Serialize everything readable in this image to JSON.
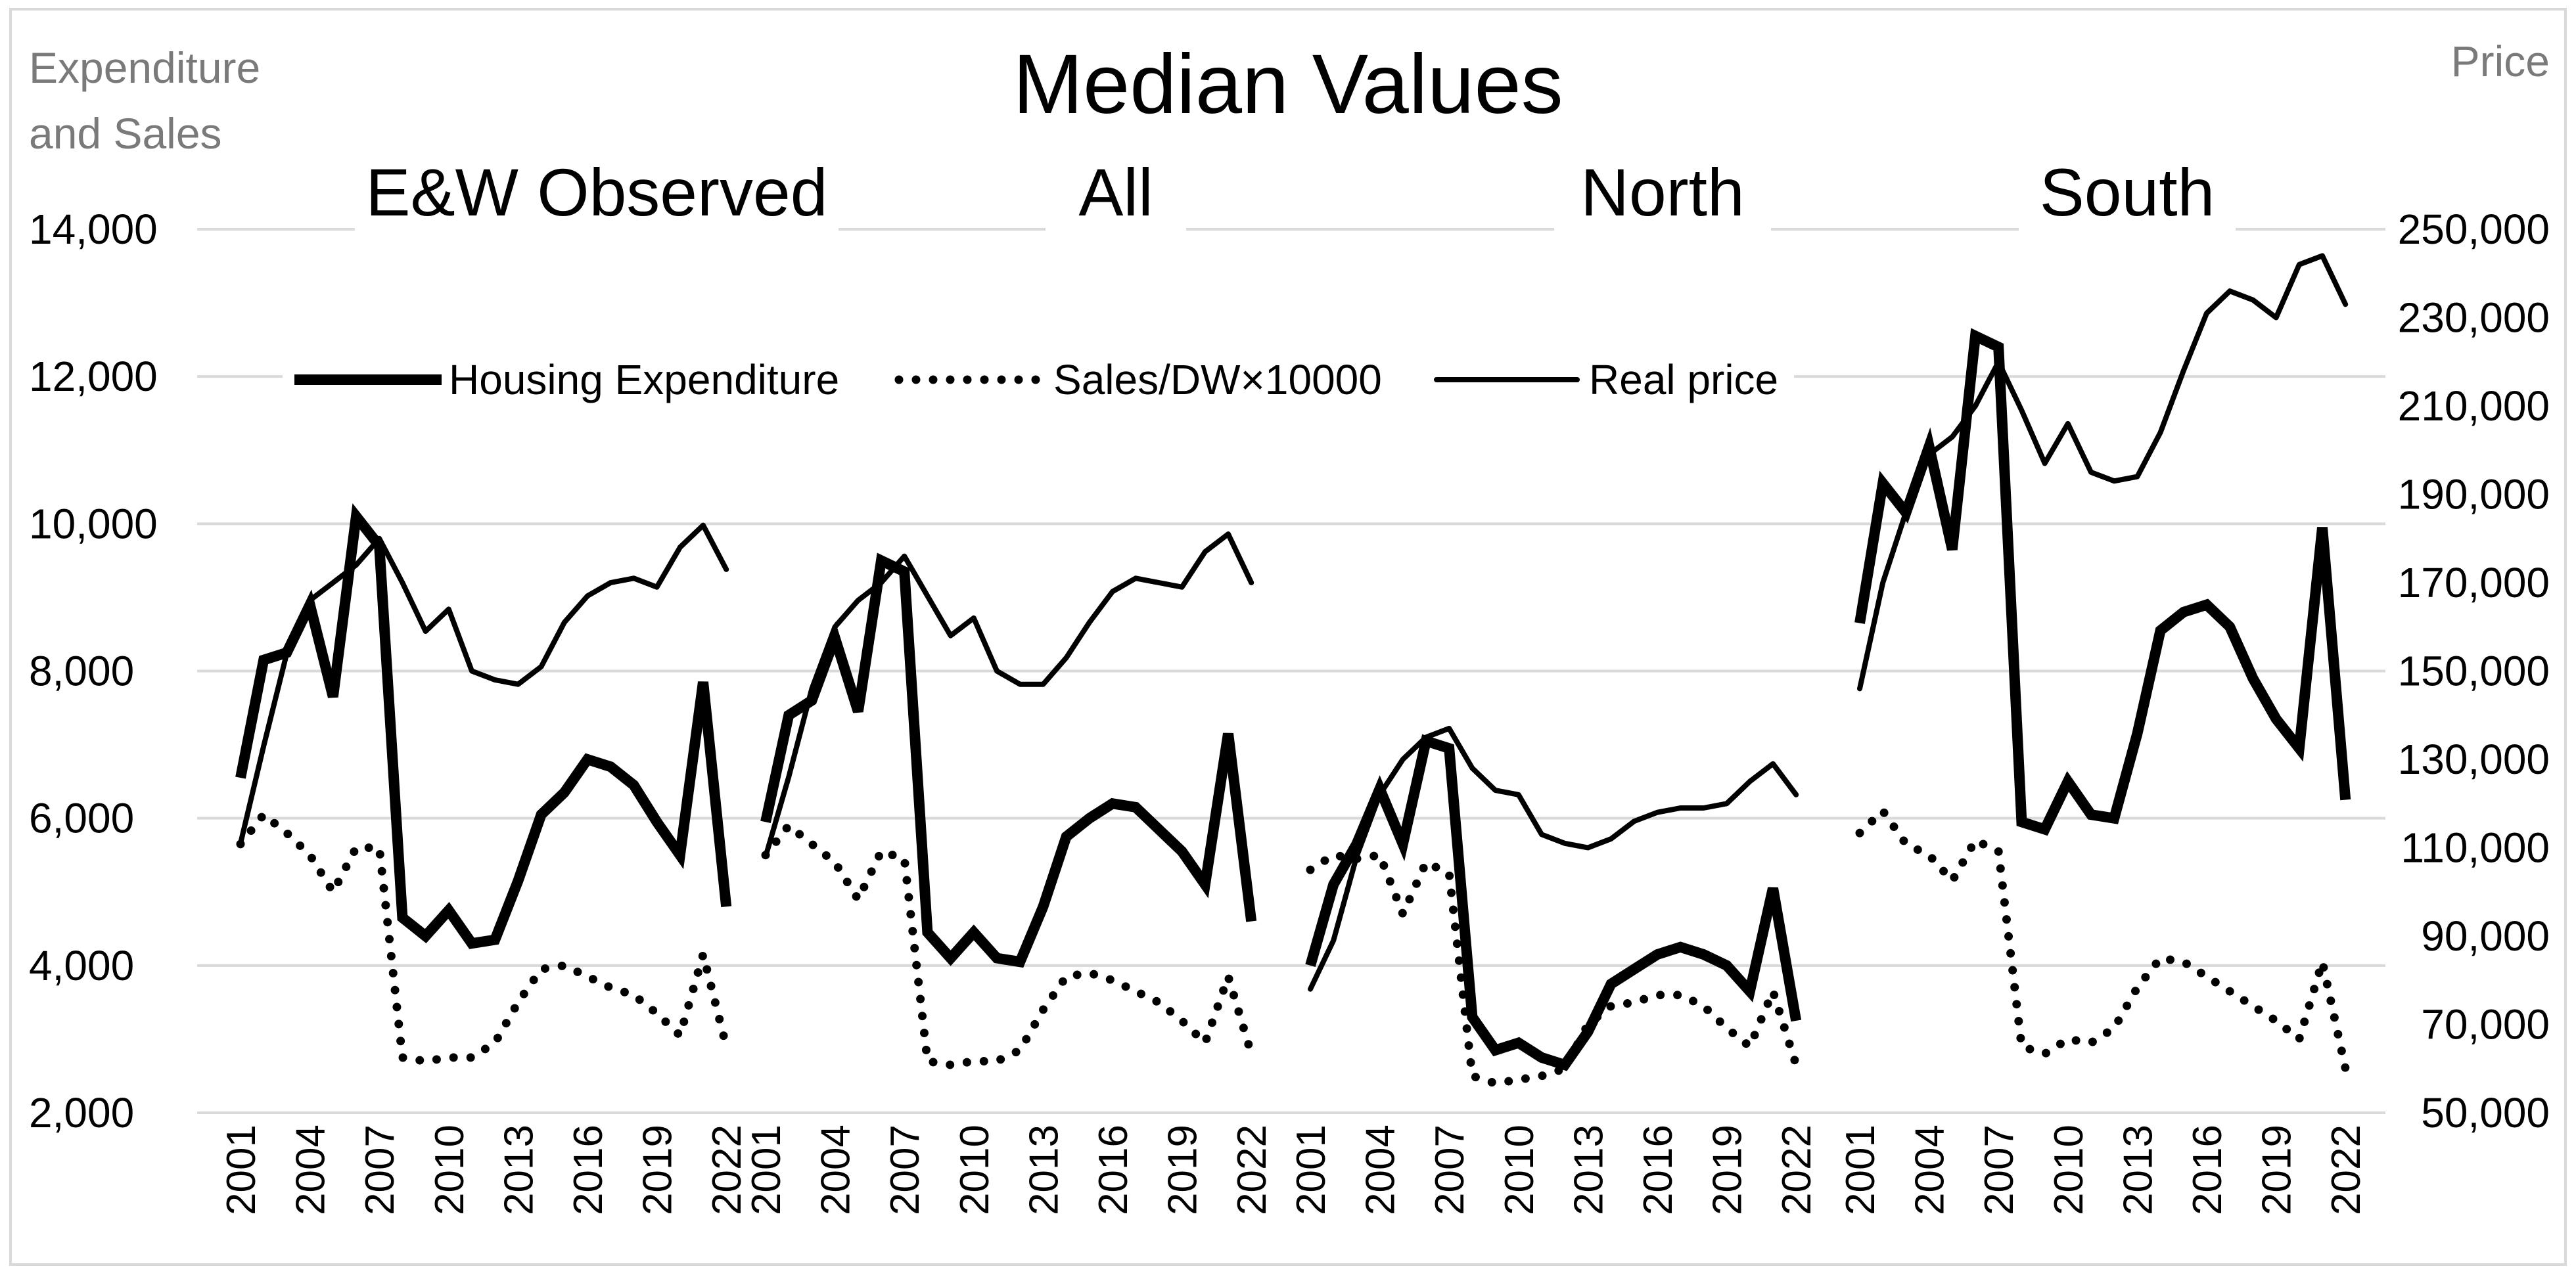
{
  "chart_data": {
    "type": "line",
    "title": "Median Values",
    "left_axis_title": [
      "Expenditure",
      "and Sales"
    ],
    "right_axis_title": "Price",
    "left_ticks": [
      "14,000",
      "12,000",
      "10,000",
      "8,000",
      "6,000",
      "4,000",
      "2,000"
    ],
    "right_ticks": [
      "250,000",
      "230,000",
      "210,000",
      "190,000",
      "170,000",
      "150,000",
      "130,000",
      "110,000",
      "90,000",
      "70,000",
      "50,000"
    ],
    "ylim_left": [
      2000,
      14000
    ],
    "ylim_right": [
      50000,
      250000
    ],
    "years": [
      2001,
      2002,
      2003,
      2004,
      2005,
      2006,
      2007,
      2008,
      2009,
      2010,
      2011,
      2012,
      2013,
      2014,
      2015,
      2016,
      2017,
      2018,
      2019,
      2020,
      2021,
      2022
    ],
    "x_tick_labels": [
      "2001",
      "2004",
      "2007",
      "2010",
      "2013",
      "2016",
      "2019",
      "2022"
    ],
    "legend": [
      {
        "name": "Housing Expenditure",
        "style": "thick"
      },
      {
        "name": "Sales/DW×10000",
        "style": "dotted"
      },
      {
        "name": "Real price",
        "style": "thin"
      }
    ],
    "panels": [
      {
        "name": "E&W Observed",
        "housing_expenditure": [
          6550,
          8150,
          8250,
          8900,
          7650,
          10100,
          9700,
          4650,
          4400,
          4750,
          4300,
          4350,
          5150,
          6050,
          6350,
          6800,
          6700,
          6450,
          5950,
          5500,
          7850,
          4800
        ],
        "sales_dw": [
          5650,
          6050,
          5800,
          5500,
          5000,
          5600,
          5600,
          2750,
          2700,
          2750,
          2750,
          2950,
          3500,
          3950,
          4000,
          3850,
          3700,
          3600,
          3350,
          3050,
          4150,
          2900
        ],
        "real_price": [
          111000,
          133000,
          154000,
          166000,
          170000,
          174000,
          180000,
          170000,
          159000,
          164000,
          150000,
          148000,
          147000,
          151000,
          161000,
          167000,
          170000,
          171000,
          169000,
          178000,
          183000,
          173000
        ]
      },
      {
        "name": "All",
        "housing_expenditure": [
          5950,
          7400,
          7600,
          8450,
          7450,
          9500,
          9350,
          4450,
          4100,
          4450,
          4100,
          4050,
          4800,
          5750,
          6000,
          6200,
          6150,
          5850,
          5550,
          5100,
          7150,
          4600
        ],
        "sales_dw": [
          5500,
          5900,
          5650,
          5400,
          4900,
          5550,
          5450,
          2700,
          2650,
          2700,
          2700,
          2850,
          3400,
          3850,
          3900,
          3800,
          3650,
          3500,
          3250,
          2950,
          3850,
          2800
        ],
        "real_price": [
          108000,
          126000,
          146000,
          160000,
          166000,
          170000,
          176000,
          167000,
          158000,
          162000,
          150000,
          147000,
          147000,
          153000,
          161000,
          168000,
          171000,
          170000,
          169000,
          177000,
          181000,
          170000
        ]
      },
      {
        "name": "North",
        "housing_expenditure": [
          4000,
          5100,
          5650,
          6400,
          5650,
          7050,
          6950,
          3300,
          2850,
          2950,
          2750,
          2650,
          3100,
          3750,
          3950,
          4150,
          4250,
          4150,
          4000,
          3650,
          5050,
          3250
        ],
        "sales_dw": [
          5300,
          5500,
          5450,
          5500,
          4700,
          5400,
          5250,
          2500,
          2400,
          2450,
          2500,
          2600,
          3200,
          3450,
          3500,
          3600,
          3600,
          3450,
          3150,
          2900,
          3650,
          2650
        ],
        "real_price": [
          78000,
          89000,
          108000,
          122000,
          130000,
          135000,
          137000,
          128000,
          123000,
          122000,
          113000,
          111000,
          110000,
          112000,
          116000,
          118000,
          119000,
          119000,
          120000,
          125000,
          129000,
          122000
        ]
      },
      {
        "name": "South",
        "housing_expenditure": [
          8650,
          10550,
          10150,
          11050,
          9650,
          12550,
          12400,
          5950,
          5850,
          6500,
          6050,
          6000,
          7150,
          8550,
          8800,
          8900,
          8600,
          7900,
          7350,
          6950,
          9950,
          6250
        ],
        "sales_dw": [
          5800,
          6100,
          5650,
          5500,
          5150,
          5700,
          5550,
          2900,
          2800,
          3000,
          2950,
          3150,
          3700,
          4100,
          4050,
          3850,
          3650,
          3450,
          3250,
          3000,
          4050,
          2600
        ],
        "real_price": [
          146000,
          170000,
          186000,
          199000,
          203000,
          210000,
          220000,
          209000,
          197000,
          206000,
          195000,
          193000,
          194000,
          204000,
          218000,
          231000,
          236000,
          234000,
          230000,
          242000,
          244000,
          233000
        ]
      }
    ]
  }
}
